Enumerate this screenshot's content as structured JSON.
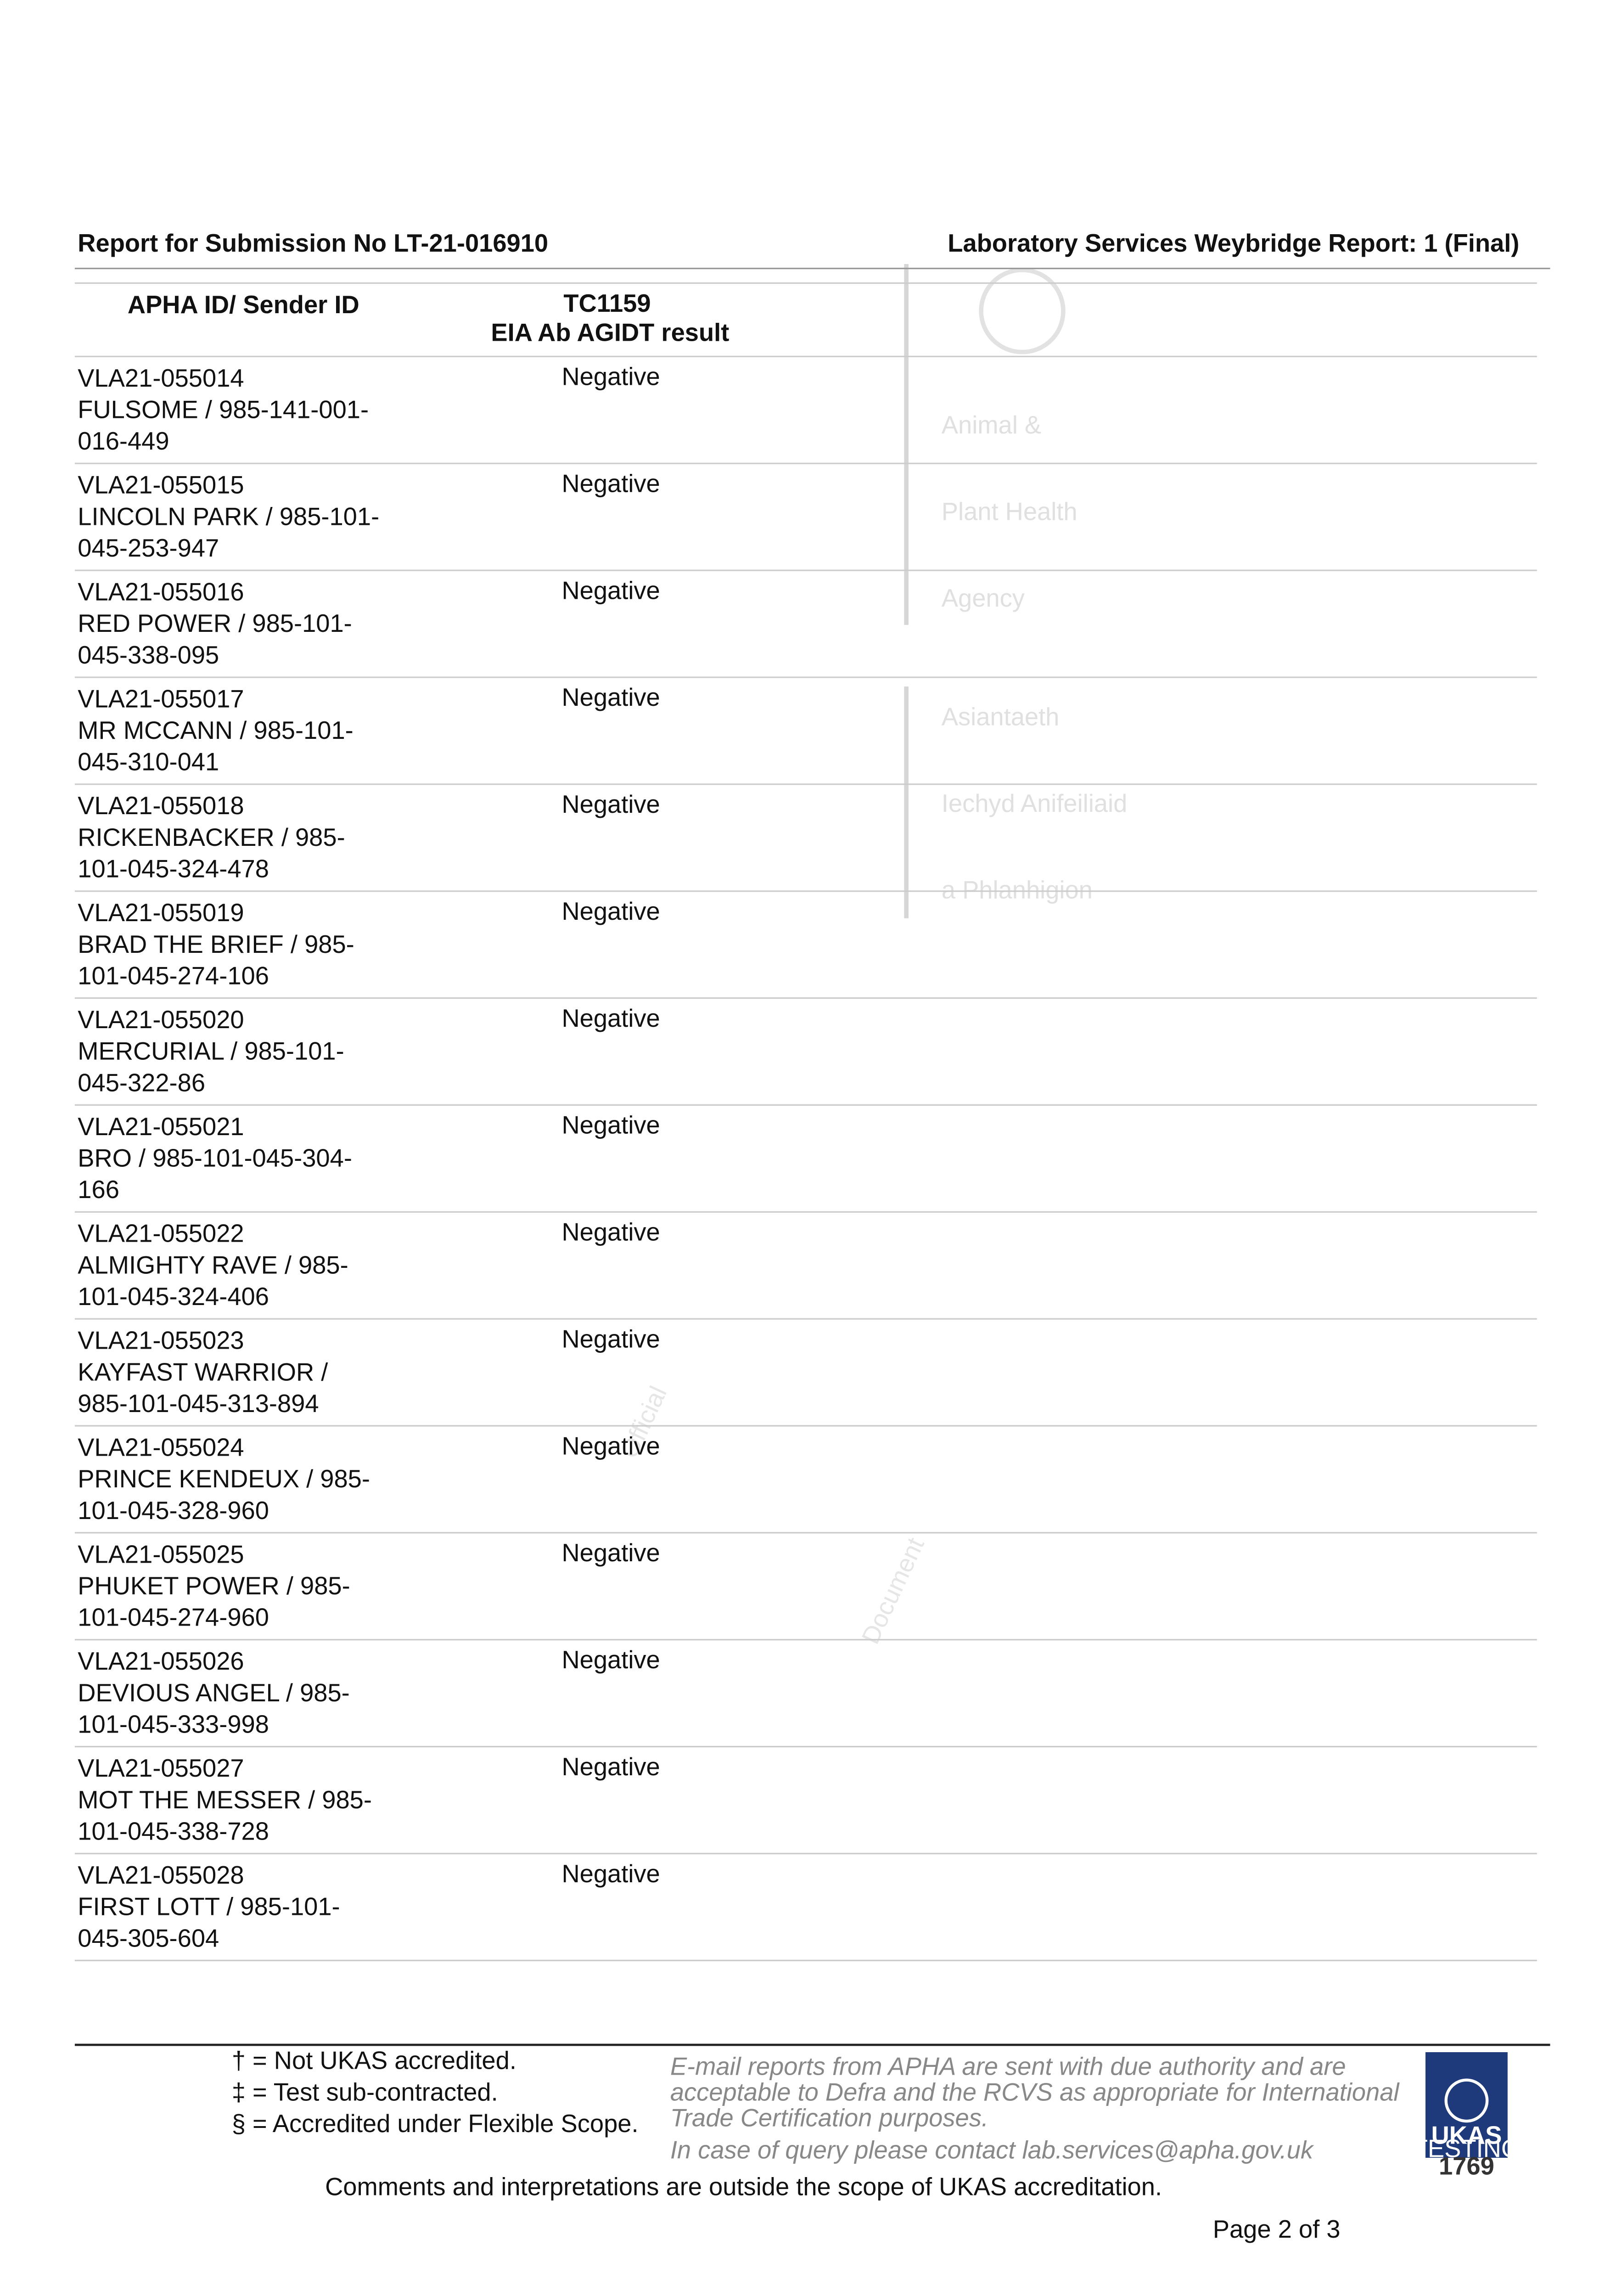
{
  "header": {
    "left": "Report for Submission No LT-21-016910",
    "right": "Laboratory Services Weybridge Report: 1 (Final)"
  },
  "table": {
    "col1_header": "APHA ID/ Sender ID",
    "col2_header_lines": [
      "TC1159",
      "EIA Ab AGIDT result"
    ],
    "rows": [
      {
        "id": "VLA21-055014",
        "sender_lines": [
          "FULSOME / 985-141-001-",
          "016-449"
        ],
        "result": "Negative"
      },
      {
        "id": "VLA21-055015",
        "sender_lines": [
          "LINCOLN PARK / 985-101-",
          "045-253-947"
        ],
        "result": "Negative"
      },
      {
        "id": "VLA21-055016",
        "sender_lines": [
          "RED POWER / 985-101-",
          "045-338-095"
        ],
        "result": "Negative"
      },
      {
        "id": "VLA21-055017",
        "sender_lines": [
          "MR MCCANN / 985-101-",
          "045-310-041"
        ],
        "result": "Negative"
      },
      {
        "id": "VLA21-055018",
        "sender_lines": [
          "RICKENBACKER / 985-",
          "101-045-324-478"
        ],
        "result": "Negative"
      },
      {
        "id": "VLA21-055019",
        "sender_lines": [
          "BRAD THE BRIEF / 985-",
          "101-045-274-106"
        ],
        "result": "Negative"
      },
      {
        "id": "VLA21-055020",
        "sender_lines": [
          "MERCURIAL / 985-101-",
          "045-322-86"
        ],
        "result": "Negative"
      },
      {
        "id": "VLA21-055021",
        "sender_lines": [
          "BRO / 985-101-045-304-",
          "166"
        ],
        "result": "Negative"
      },
      {
        "id": "VLA21-055022",
        "sender_lines": [
          "ALMIGHTY RAVE / 985-",
          "101-045-324-406"
        ],
        "result": "Negative"
      },
      {
        "id": "VLA21-055023",
        "sender_lines": [
          "KAYFAST WARRIOR /",
          "985-101-045-313-894"
        ],
        "result": "Negative"
      },
      {
        "id": "VLA21-055024",
        "sender_lines": [
          "PRINCE KENDEUX / 985-",
          "101-045-328-960"
        ],
        "result": "Negative"
      },
      {
        "id": "VLA21-055025",
        "sender_lines": [
          "PHUKET POWER / 985-",
          "101-045-274-960"
        ],
        "result": "Negative"
      },
      {
        "id": "VLA21-055026",
        "sender_lines": [
          "DEVIOUS ANGEL / 985-",
          "101-045-333-998"
        ],
        "result": "Negative"
      },
      {
        "id": "VLA21-055027",
        "sender_lines": [
          "MOT THE MESSER / 985-",
          "101-045-338-728"
        ],
        "result": "Negative"
      },
      {
        "id": "VLA21-055028",
        "sender_lines": [
          "FIRST LOTT / 985-101-",
          "045-305-604"
        ],
        "result": "Negative"
      }
    ]
  },
  "watermark": {
    "agency_lines": [
      "Animal &",
      "Plant Health",
      "Agency"
    ],
    "welsh_lines": [
      "Asiantaeth",
      "Iechyd Anifeiliaid",
      "a Phlanhigion"
    ],
    "stamp_lines": [
      "Official",
      "Document"
    ]
  },
  "footer": {
    "legend": [
      "† = Not UKAS accredited.",
      "‡ = Test sub-contracted.",
      "§ = Accredited under Flexible Scope."
    ],
    "notes": [
      "E-mail reports from APHA are sent with due authority and are",
      "acceptable to Defra and the RCVS as appropriate for International",
      "Trade Certification purposes.",
      "In case of query please contact lab.services@apha.gov.uk"
    ],
    "comments": "Comments and interpretations are outside the scope of UKAS accreditation.",
    "page": "Page 2 of  3",
    "logo": {
      "name": "UKAS",
      "sub": "TESTING",
      "number": "1769"
    }
  }
}
